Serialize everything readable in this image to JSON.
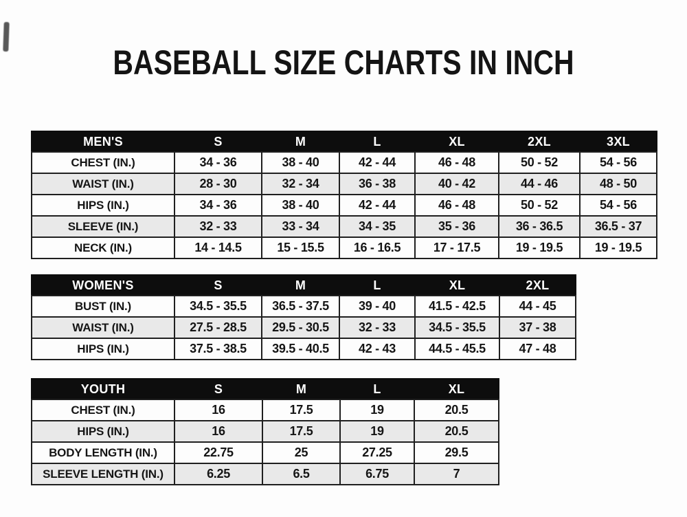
{
  "page": {
    "title": "BASEBALL SIZE CHARTS IN INCH"
  },
  "colors": {
    "header_bg": "#0d0d0d",
    "header_text": "#ffffff",
    "row_bg": "#fdfdfd",
    "row_alt_bg": "#e9e9e9",
    "border": "#1f1f1f",
    "text": "#151515",
    "page_bg": "#fdfdfd",
    "title_text": "#141414"
  },
  "tables": [
    {
      "id": "mens",
      "header": [
        "MEN'S",
        "S",
        "M",
        "L",
        "XL",
        "2XL",
        "3XL"
      ],
      "rows": [
        {
          "label": "CHEST (IN.)",
          "values": [
            "34 - 36",
            "38 - 40",
            "42 - 44",
            "46 - 48",
            "50 - 52",
            "54 - 56"
          ]
        },
        {
          "label": "WAIST (IN.)",
          "values": [
            "28 - 30",
            "32 - 34",
            "36 - 38",
            "40 - 42",
            "44 - 46",
            "48 - 50"
          ]
        },
        {
          "label": "HIPS (IN.)",
          "values": [
            "34 - 36",
            "38 - 40",
            "42 - 44",
            "46 - 48",
            "50 - 52",
            "54 - 56"
          ]
        },
        {
          "label": "SLEEVE (IN.)",
          "values": [
            "32 - 33",
            "33 - 34",
            "34 - 35",
            "35 - 36",
            "36 - 36.5",
            "36.5 - 37"
          ]
        },
        {
          "label": "NECK (IN.)",
          "values": [
            "14 - 14.5",
            "15 - 15.5",
            "16 - 16.5",
            "17 - 17.5",
            "19 - 19.5",
            "19 - 19.5"
          ]
        }
      ]
    },
    {
      "id": "womens",
      "header": [
        "WOMEN'S",
        "S",
        "M",
        "L",
        "XL",
        "2XL"
      ],
      "rows": [
        {
          "label": "BUST (IN.)",
          "values": [
            "34.5 - 35.5",
            "36.5 - 37.5",
            "39 - 40",
            "41.5 - 42.5",
            "44 - 45"
          ]
        },
        {
          "label": "WAIST (IN.)",
          "values": [
            "27.5 - 28.5",
            "29.5 - 30.5",
            "32 - 33",
            "34.5 - 35.5",
            "37 - 38"
          ]
        },
        {
          "label": "HIPS (IN.)",
          "values": [
            "37.5 - 38.5",
            "39.5 - 40.5",
            "42 - 43",
            "44.5 - 45.5",
            "47 - 48"
          ]
        }
      ]
    },
    {
      "id": "youth",
      "header": [
        "YOUTH",
        "S",
        "M",
        "L",
        "XL"
      ],
      "rows": [
        {
          "label": "CHEST (IN.)",
          "values": [
            "16",
            "17.5",
            "19",
            "20.5"
          ]
        },
        {
          "label": "HIPS (IN.)",
          "values": [
            "16",
            "17.5",
            "19",
            "20.5"
          ]
        },
        {
          "label": "BODY LENGTH (IN.)",
          "values": [
            "22.75",
            "25",
            "27.25",
            "29.5"
          ]
        },
        {
          "label": "SLEEVE LENGTH (IN.)",
          "values": [
            "6.25",
            "6.5",
            "6.75",
            "7"
          ]
        }
      ]
    }
  ]
}
